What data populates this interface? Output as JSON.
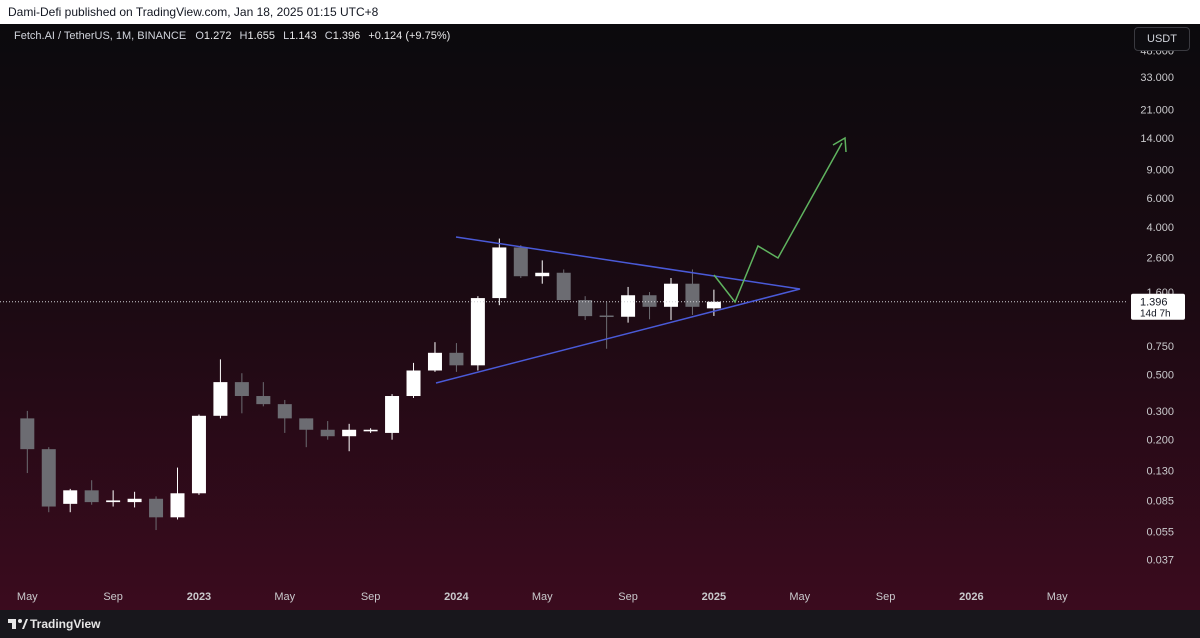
{
  "page": {
    "publish_line": "Dami-Defi published on TradingView.com, Jan 18, 2025 01:15 UTC+8",
    "brand": "TradingView"
  },
  "chart_data": {
    "type": "candlestick",
    "title": "Fetch.AI / TetherUS, 1M, BINANCE",
    "ohlc_prefixes": [
      "O",
      "H",
      "L",
      "C"
    ],
    "change": "+0.124 (+9.75%)",
    "quote_currency": "USDT",
    "countdown": "14d 7h",
    "up_color": "#ffffff",
    "down_color": "#6c6c72",
    "open": [
      0.27,
      0.175,
      0.081,
      0.098,
      0.083,
      0.083,
      0.087,
      0.067,
      0.094,
      0.28,
      0.45,
      0.37,
      0.33,
      0.27,
      0.23,
      0.21,
      0.225,
      0.22,
      0.37,
      0.53,
      0.68,
      0.57,
      1.47,
      3.0,
      2.0,
      2.1,
      1.43,
      1.15,
      1.13,
      1.53,
      1.3,
      1.8,
      1.272
    ],
    "high": [
      0.3,
      0.18,
      0.1,
      0.113,
      0.098,
      0.096,
      0.09,
      0.135,
      0.285,
      0.62,
      0.51,
      0.45,
      0.35,
      0.27,
      0.26,
      0.25,
      0.235,
      0.38,
      0.59,
      0.79,
      0.78,
      1.51,
      3.4,
      3.1,
      2.5,
      2.2,
      1.51,
      1.39,
      1.72,
      1.6,
      1.95,
      2.2,
      1.655
    ],
    "low": [
      0.125,
      0.072,
      0.072,
      0.08,
      0.078,
      0.077,
      0.056,
      0.065,
      0.092,
      0.27,
      0.29,
      0.32,
      0.22,
      0.18,
      0.2,
      0.17,
      0.22,
      0.2,
      0.36,
      0.52,
      0.52,
      0.53,
      1.33,
      1.95,
      1.8,
      1.42,
      1.08,
      0.72,
      1.04,
      1.09,
      1.08,
      1.16,
      1.143
    ],
    "close": [
      0.175,
      0.078,
      0.098,
      0.083,
      0.085,
      0.087,
      0.067,
      0.094,
      0.28,
      0.45,
      0.37,
      0.33,
      0.27,
      0.23,
      0.21,
      0.23,
      0.23,
      0.37,
      0.53,
      0.68,
      0.57,
      1.47,
      3.0,
      2.0,
      2.1,
      1.43,
      1.14,
      1.14,
      1.53,
      1.3,
      1.8,
      1.3,
      1.396
    ],
    "log_scale": true,
    "grid": false,
    "ylim": [
      0.0285,
      49.8
    ],
    "yticks": [
      {
        "value": 48,
        "label": "48.000"
      },
      {
        "value": 33,
        "label": "33.000"
      },
      {
        "value": 21,
        "label": "21.000"
      },
      {
        "value": 14,
        "label": "14.000"
      },
      {
        "value": 9,
        "label": "9.000"
      },
      {
        "value": 6,
        "label": "6.000"
      },
      {
        "value": 4,
        "label": "4.000"
      },
      {
        "value": 2.6,
        "label": "2.600"
      },
      {
        "value": 1.6,
        "label": "1.600"
      },
      {
        "value": 0.75,
        "label": "0.750"
      },
      {
        "value": 0.5,
        "label": "0.500"
      },
      {
        "value": 0.3,
        "label": "0.300"
      },
      {
        "value": 0.2,
        "label": "0.200"
      },
      {
        "value": 0.13,
        "label": "0.130"
      },
      {
        "value": 0.085,
        "label": "0.085"
      },
      {
        "value": 0.055,
        "label": "0.055"
      },
      {
        "value": 0.037,
        "label": "0.037"
      }
    ],
    "xlim": [
      -0.9,
      51.3
    ],
    "xticks": [
      {
        "value": 0,
        "label": "May"
      },
      {
        "value": 4,
        "label": "Sep"
      },
      {
        "value": 8,
        "label": "2023"
      },
      {
        "value": 12,
        "label": "May"
      },
      {
        "value": 16,
        "label": "Sep"
      },
      {
        "value": 20,
        "label": "2024"
      },
      {
        "value": 24,
        "label": "May"
      },
      {
        "value": 28,
        "label": "Sep"
      },
      {
        "value": 32,
        "label": "2025"
      },
      {
        "value": 36,
        "label": "May"
      },
      {
        "value": 40,
        "label": "Sep"
      },
      {
        "value": 44,
        "label": "2026"
      },
      {
        "value": 48,
        "label": "May"
      }
    ]
  }
}
